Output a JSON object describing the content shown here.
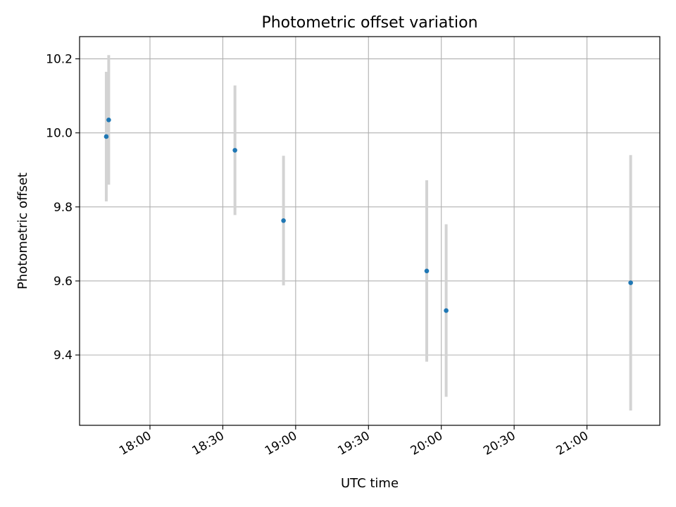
{
  "chart_data": {
    "type": "scatter",
    "title": "Photometric offset variation",
    "xlabel": "UTC time",
    "ylabel": "Photometric offset",
    "x_ticks": [
      "18:00",
      "18:30",
      "19:00",
      "19:30",
      "20:00",
      "20:30",
      "21:00"
    ],
    "y_ticks": [
      9.4,
      9.6,
      9.8,
      10.0,
      10.2
    ],
    "xlim": [
      "17:31",
      "21:30"
    ],
    "ylim": [
      9.21,
      10.26
    ],
    "grid": true,
    "point_color": "#1f77b4",
    "errorbar_color": "#d3d3d3",
    "points": [
      {
        "x": "17:42",
        "y": 9.99,
        "err": 0.175
      },
      {
        "x": "17:43",
        "y": 10.035,
        "err": 0.175
      },
      {
        "x": "18:35",
        "y": 9.953,
        "err": 0.175
      },
      {
        "x": "18:55",
        "y": 9.763,
        "err": 0.175
      },
      {
        "x": "19:54",
        "y": 9.627,
        "err": 0.245
      },
      {
        "x": "20:02",
        "y": 9.52,
        "err": 0.233
      },
      {
        "x": "21:18",
        "y": 9.595,
        "err": 0.345
      }
    ]
  }
}
